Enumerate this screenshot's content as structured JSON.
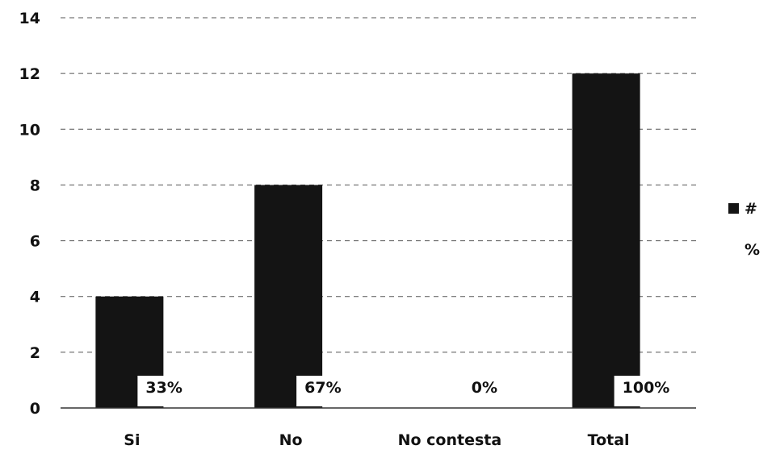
{
  "chart_data": {
    "type": "bar",
    "categories": [
      "Si",
      "No",
      "No contesta",
      "Total"
    ],
    "series": [
      {
        "name": "#",
        "values": [
          4,
          8,
          0,
          12
        ],
        "color": "#141414"
      },
      {
        "name": "%",
        "values": [
          0.33,
          0.67,
          0,
          1
        ],
        "color": "#141414",
        "labels": [
          "33%",
          "67%",
          "0%",
          "100%"
        ]
      }
    ],
    "yticks": [
      0,
      2,
      4,
      6,
      8,
      10,
      12,
      14
    ],
    "ylim": [
      0,
      14
    ],
    "grid": true,
    "legend_position": "right",
    "title": "",
    "xlabel": "",
    "ylabel": ""
  }
}
